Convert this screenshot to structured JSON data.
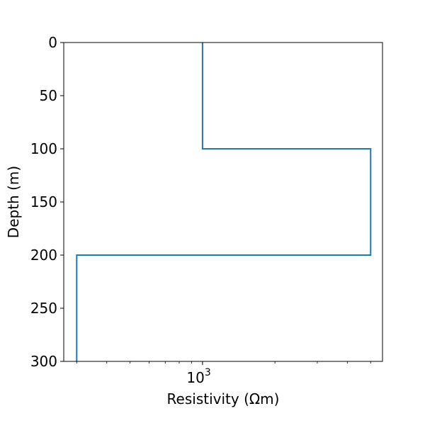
{
  "chart_data": {
    "type": "line",
    "title": "",
    "xlabel": "Resistivity (Ωm)",
    "ylabel": "Depth (m)",
    "x_scale": "log",
    "y_inverted": true,
    "xlim": [
      265,
      5600
    ],
    "ylim": [
      0,
      300
    ],
    "x_major_ticks": [
      {
        "value": 1000,
        "label_base": "10",
        "label_exp": "3"
      }
    ],
    "x_minor_ticks": [
      300,
      400,
      500,
      600,
      700,
      800,
      900,
      2000,
      3000,
      4000,
      5000
    ],
    "y_ticks": [
      {
        "value": 0,
        "label": "0"
      },
      {
        "value": 50,
        "label": "50"
      },
      {
        "value": 100,
        "label": "100"
      },
      {
        "value": 150,
        "label": "150"
      },
      {
        "value": 200,
        "label": "200"
      },
      {
        "value": 250,
        "label": "250"
      },
      {
        "value": 300,
        "label": "300"
      }
    ],
    "grid": false,
    "series": [
      {
        "color": "#1f77b4",
        "step_profile": [
          {
            "resistivity": 1000,
            "top_depth": 0,
            "bottom_depth": 100
          },
          {
            "resistivity": 5000,
            "top_depth": 100,
            "bottom_depth": 200
          },
          {
            "resistivity": 300,
            "top_depth": 200,
            "bottom_depth": 300
          }
        ]
      }
    ]
  }
}
